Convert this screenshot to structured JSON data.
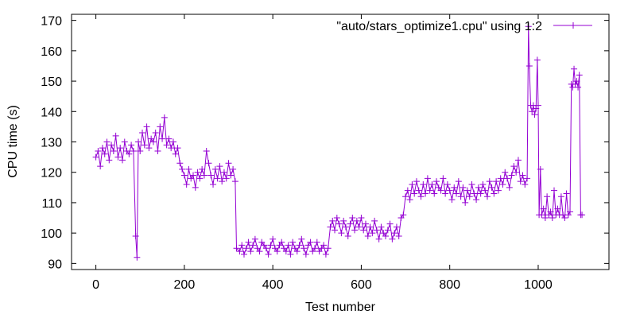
{
  "chart_data": {
    "type": "line",
    "marker": "plus",
    "xlabel": "Test number",
    "ylabel": "CPU time (s)",
    "xlim": [
      -55,
      1160
    ],
    "ylim": [
      88,
      172
    ],
    "xticks": [
      0,
      200,
      400,
      600,
      800,
      1000
    ],
    "yticks": [
      90,
      100,
      110,
      120,
      130,
      140,
      150,
      160,
      170
    ],
    "grid": false,
    "legend_position": "top-right",
    "series": [
      {
        "name": "\"auto/stars_optimize1.cpu\" using 1:2",
        "color": "#9400d3",
        "points": [
          [
            0,
            125
          ],
          [
            5,
            127
          ],
          [
            10,
            122
          ],
          [
            15,
            128
          ],
          [
            20,
            126
          ],
          [
            25,
            130
          ],
          [
            30,
            124
          ],
          [
            35,
            129
          ],
          [
            40,
            127
          ],
          [
            45,
            132
          ],
          [
            50,
            125
          ],
          [
            55,
            128
          ],
          [
            60,
            124
          ],
          [
            65,
            130
          ],
          [
            70,
            127
          ],
          [
            75,
            126
          ],
          [
            80,
            129
          ],
          [
            85,
            127
          ],
          [
            90,
            99
          ],
          [
            93,
            92
          ],
          [
            96,
            130
          ],
          [
            100,
            127
          ],
          [
            105,
            133
          ],
          [
            110,
            129
          ],
          [
            115,
            135
          ],
          [
            120,
            128
          ],
          [
            125,
            131
          ],
          [
            130,
            130
          ],
          [
            135,
            133
          ],
          [
            140,
            127
          ],
          [
            145,
            135
          ],
          [
            150,
            131
          ],
          [
            155,
            138
          ],
          [
            160,
            129
          ],
          [
            165,
            131
          ],
          [
            170,
            128
          ],
          [
            175,
            130
          ],
          [
            180,
            126
          ],
          [
            185,
            128
          ],
          [
            190,
            123
          ],
          [
            195,
            121
          ],
          [
            200,
            119
          ],
          [
            205,
            116
          ],
          [
            210,
            121
          ],
          [
            215,
            118
          ],
          [
            220,
            119
          ],
          [
            225,
            115
          ],
          [
            230,
            120
          ],
          [
            235,
            118
          ],
          [
            240,
            121
          ],
          [
            245,
            119
          ],
          [
            250,
            127
          ],
          [
            255,
            123
          ],
          [
            260,
            119
          ],
          [
            265,
            116
          ],
          [
            270,
            121
          ],
          [
            275,
            118
          ],
          [
            280,
            122
          ],
          [
            285,
            117
          ],
          [
            290,
            120
          ],
          [
            295,
            118
          ],
          [
            300,
            123
          ],
          [
            305,
            119
          ],
          [
            310,
            121
          ],
          [
            315,
            117
          ],
          [
            318,
            95
          ],
          [
            325,
            94
          ],
          [
            330,
            96
          ],
          [
            335,
            93
          ],
          [
            340,
            95
          ],
          [
            345,
            97
          ],
          [
            350,
            94
          ],
          [
            355,
            96
          ],
          [
            360,
            98
          ],
          [
            365,
            95
          ],
          [
            370,
            94
          ],
          [
            375,
            97
          ],
          [
            380,
            96
          ],
          [
            385,
            95
          ],
          [
            390,
            93
          ],
          [
            395,
            96
          ],
          [
            400,
            98
          ],
          [
            405,
            95
          ],
          [
            410,
            94
          ],
          [
            415,
            96
          ],
          [
            420,
            97
          ],
          [
            425,
            95
          ],
          [
            430,
            94
          ],
          [
            435,
            96
          ],
          [
            440,
            93
          ],
          [
            445,
            97
          ],
          [
            450,
            95
          ],
          [
            455,
            94
          ],
          [
            460,
            96
          ],
          [
            465,
            98
          ],
          [
            470,
            95
          ],
          [
            475,
            93
          ],
          [
            480,
            96
          ],
          [
            485,
            97
          ],
          [
            490,
            94
          ],
          [
            495,
            95
          ],
          [
            500,
            97
          ],
          [
            505,
            94
          ],
          [
            510,
            95
          ],
          [
            515,
            96
          ],
          [
            520,
            93
          ],
          [
            525,
            95
          ],
          [
            530,
            102
          ],
          [
            535,
            104
          ],
          [
            540,
            101
          ],
          [
            545,
            105
          ],
          [
            550,
            103
          ],
          [
            555,
            100
          ],
          [
            560,
            104
          ],
          [
            565,
            102
          ],
          [
            570,
            99
          ],
          [
            575,
            103
          ],
          [
            580,
            105
          ],
          [
            585,
            101
          ],
          [
            590,
            104
          ],
          [
            595,
            102
          ],
          [
            600,
            105
          ],
          [
            605,
            101
          ],
          [
            610,
            103
          ],
          [
            615,
            99
          ],
          [
            620,
            102
          ],
          [
            625,
            100
          ],
          [
            630,
            104
          ],
          [
            635,
            101
          ],
          [
            640,
            98
          ],
          [
            645,
            102
          ],
          [
            650,
            100
          ],
          [
            655,
            99
          ],
          [
            660,
            101
          ],
          [
            665,
            103
          ],
          [
            670,
            98
          ],
          [
            675,
            100
          ],
          [
            680,
            102
          ],
          [
            685,
            99
          ],
          [
            690,
            105
          ],
          [
            695,
            106
          ],
          [
            700,
            112
          ],
          [
            705,
            114
          ],
          [
            710,
            111
          ],
          [
            715,
            116
          ],
          [
            720,
            113
          ],
          [
            725,
            117
          ],
          [
            730,
            114
          ],
          [
            735,
            112
          ],
          [
            740,
            116
          ],
          [
            745,
            113
          ],
          [
            750,
            118
          ],
          [
            755,
            114
          ],
          [
            760,
            116
          ],
          [
            765,
            113
          ],
          [
            770,
            117
          ],
          [
            775,
            115
          ],
          [
            780,
            114
          ],
          [
            785,
            118
          ],
          [
            790,
            113
          ],
          [
            795,
            116
          ],
          [
            800,
            114
          ],
          [
            805,
            111
          ],
          [
            810,
            115
          ],
          [
            815,
            113
          ],
          [
            820,
            117
          ],
          [
            825,
            112
          ],
          [
            830,
            115
          ],
          [
            835,
            110
          ],
          [
            840,
            114
          ],
          [
            845,
            112
          ],
          [
            850,
            116
          ],
          [
            855,
            113
          ],
          [
            860,
            111
          ],
          [
            865,
            115
          ],
          [
            870,
            113
          ],
          [
            875,
            116
          ],
          [
            880,
            114
          ],
          [
            885,
            112
          ],
          [
            890,
            117
          ],
          [
            895,
            115
          ],
          [
            900,
            113
          ],
          [
            905,
            117
          ],
          [
            910,
            114
          ],
          [
            915,
            118
          ],
          [
            920,
            116
          ],
          [
            925,
            120
          ],
          [
            930,
            118
          ],
          [
            935,
            115
          ],
          [
            940,
            119
          ],
          [
            945,
            122
          ],
          [
            950,
            120
          ],
          [
            955,
            124
          ],
          [
            960,
            117
          ],
          [
            965,
            119
          ],
          [
            970,
            116
          ],
          [
            975,
            118
          ],
          [
            978,
            168
          ],
          [
            980,
            155
          ],
          [
            983,
            142
          ],
          [
            986,
            140
          ],
          [
            989,
            142
          ],
          [
            992,
            139
          ],
          [
            995,
            141
          ],
          [
            998,
            157
          ],
          [
            1000,
            142
          ],
          [
            1002,
            106
          ],
          [
            1005,
            121
          ],
          [
            1008,
            106
          ],
          [
            1012,
            108
          ],
          [
            1016,
            105
          ],
          [
            1020,
            112
          ],
          [
            1024,
            106
          ],
          [
            1028,
            107
          ],
          [
            1032,
            105
          ],
          [
            1036,
            114
          ],
          [
            1040,
            106
          ],
          [
            1044,
            108
          ],
          [
            1048,
            106
          ],
          [
            1052,
            112
          ],
          [
            1056,
            106
          ],
          [
            1060,
            105
          ],
          [
            1064,
            113
          ],
          [
            1068,
            106
          ],
          [
            1072,
            107
          ],
          [
            1075,
            149
          ],
          [
            1078,
            148
          ],
          [
            1081,
            154
          ],
          [
            1084,
            149
          ],
          [
            1087,
            150
          ],
          [
            1090,
            148
          ],
          [
            1093,
            152
          ],
          [
            1096,
            106
          ],
          [
            1099,
            106
          ]
        ]
      }
    ]
  }
}
